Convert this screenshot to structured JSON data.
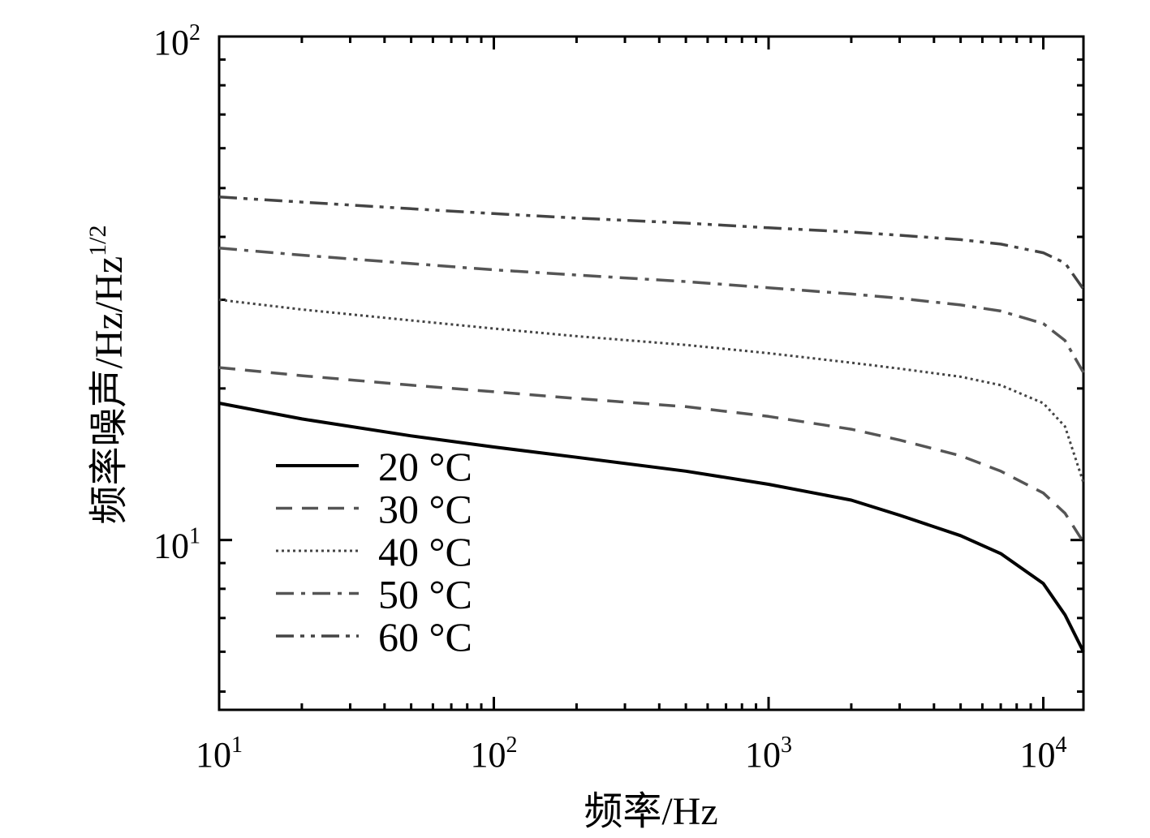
{
  "chart_data": {
    "type": "line",
    "xlabel": "频率/Hz",
    "ylabel_main": "频率噪声/Hz/Hz",
    "ylabel_sup": "1/2",
    "x_scale": "log",
    "y_scale": "log",
    "xlim": [
      10,
      14000
    ],
    "ylim": [
      4.6,
      100
    ],
    "x_ticks": [
      {
        "base": "10",
        "exp": "1",
        "value": 10
      },
      {
        "base": "10",
        "exp": "2",
        "value": 100
      },
      {
        "base": "10",
        "exp": "3",
        "value": 1000
      },
      {
        "base": "10",
        "exp": "4",
        "value": 10000
      }
    ],
    "y_ticks": [
      {
        "base": "10",
        "exp": "1",
        "value": 10
      },
      {
        "base": "10",
        "exp": "2",
        "value": 100
      }
    ],
    "grid": false,
    "legend_position": "lower-left",
    "series": [
      {
        "name": "20 °C",
        "color": "#000000",
        "dash": "solid",
        "width": 4,
        "x": [
          10,
          20,
          50,
          100,
          200,
          500,
          1000,
          2000,
          3000,
          5000,
          7000,
          10000,
          12000,
          14000
        ],
        "y": [
          18.7,
          17.4,
          16.1,
          15.3,
          14.6,
          13.7,
          12.9,
          12.0,
          11.2,
          10.2,
          9.4,
          8.2,
          7.1,
          6.0
        ]
      },
      {
        "name": "30 °C",
        "color": "#555555",
        "dash": "dash",
        "width": 3.5,
        "x": [
          10,
          20,
          50,
          100,
          200,
          500,
          1000,
          2000,
          3000,
          5000,
          7000,
          10000,
          12000,
          14000
        ],
        "y": [
          22.0,
          21.2,
          20.3,
          19.7,
          19.1,
          18.4,
          17.6,
          16.6,
          15.8,
          14.7,
          13.7,
          12.4,
          11.3,
          9.9
        ]
      },
      {
        "name": "40 °C",
        "color": "#444444",
        "dash": "dot",
        "width": 3,
        "x": [
          10,
          20,
          50,
          100,
          200,
          500,
          1000,
          2000,
          3000,
          5000,
          7000,
          10000,
          12000,
          14000
        ],
        "y": [
          30.0,
          28.7,
          27.3,
          26.3,
          25.4,
          24.4,
          23.5,
          22.5,
          21.9,
          21.1,
          20.3,
          18.7,
          16.8,
          13.0
        ]
      },
      {
        "name": "50 °C",
        "color": "#555555",
        "dash": "dashdot",
        "width": 3.5,
        "x": [
          10,
          20,
          50,
          100,
          200,
          500,
          1000,
          2000,
          3000,
          5000,
          7000,
          10000,
          12000,
          14000
        ],
        "y": [
          38.0,
          36.8,
          35.4,
          34.4,
          33.6,
          32.6,
          31.7,
          30.8,
          30.2,
          29.3,
          28.5,
          26.9,
          24.9,
          21.5
        ]
      },
      {
        "name": "60 °C",
        "color": "#444444",
        "dash": "dashdotdot",
        "width": 3.5,
        "x": [
          10,
          20,
          50,
          100,
          200,
          500,
          1000,
          2000,
          3000,
          5000,
          7000,
          10000,
          12000,
          14000
        ],
        "y": [
          48.0,
          46.9,
          45.5,
          44.5,
          43.6,
          42.6,
          41.7,
          40.9,
          40.3,
          39.5,
          38.7,
          37.2,
          35.5,
          31.5
        ]
      }
    ]
  }
}
